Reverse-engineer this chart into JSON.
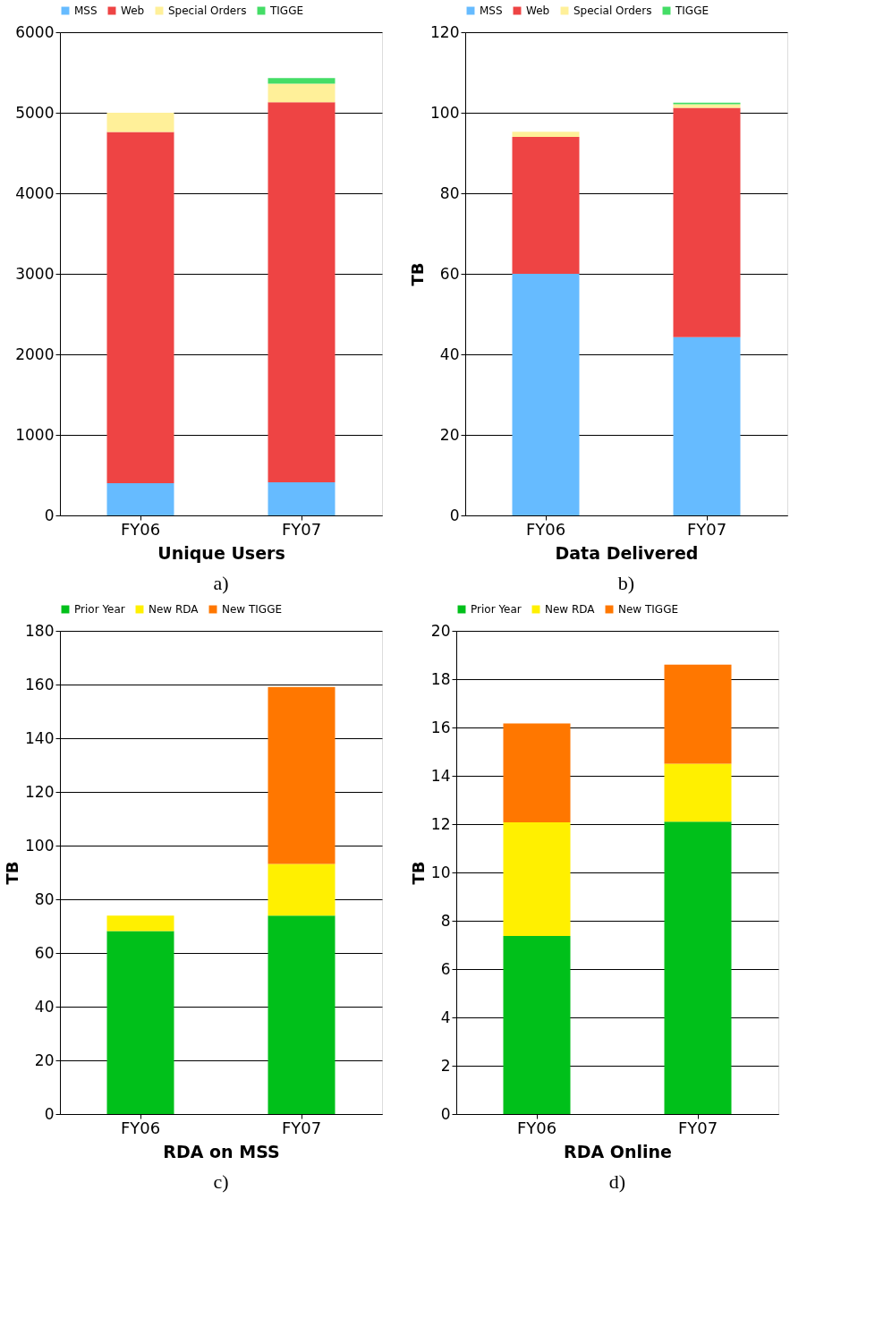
{
  "chart_data": [
    {
      "type": "bar",
      "stacked": true,
      "categories": [
        "FY06",
        "FY07"
      ],
      "xlabel": "Unique Users",
      "annotations": [
        "a)"
      ],
      "ylim": [
        0,
        6000
      ],
      "yticks": [
        0,
        1000,
        2000,
        3000,
        4000,
        5000,
        6000
      ],
      "grid": "y",
      "legend": "top",
      "series": [
        {
          "name": "MSS",
          "color": "#66bbff",
          "values": [
            400,
            410
          ]
        },
        {
          "name": "Web",
          "color": "#ee4444",
          "values": [
            4360,
            4720
          ]
        },
        {
          "name": "Special Orders",
          "color": "#fff099",
          "values": [
            240,
            230
          ]
        },
        {
          "name": "TIGGE",
          "color": "#44dd66",
          "values": [
            null,
            70
          ]
        }
      ]
    },
    {
      "type": "bar",
      "stacked": true,
      "categories": [
        "FY06",
        "FY07"
      ],
      "xlabel": "Data Delivered",
      "ylabel": "TB",
      "annotations": [
        "b)"
      ],
      "ylim": [
        0,
        120
      ],
      "yticks": [
        0,
        20,
        40,
        60,
        80,
        100,
        120
      ],
      "grid": "y",
      "legend": "top",
      "series": [
        {
          "name": "MSS",
          "color": "#66bbff",
          "values": [
            60,
            44.3
          ]
        },
        {
          "name": "Web",
          "color": "#ee4444",
          "values": [
            34,
            56.9
          ]
        },
        {
          "name": "Special Orders",
          "color": "#fff099",
          "values": [
            1.3,
            0.9
          ]
        },
        {
          "name": "TIGGE",
          "color": "#44dd66",
          "values": [
            null,
            0.4
          ]
        }
      ]
    },
    {
      "type": "bar",
      "stacked": true,
      "categories": [
        "FY06",
        "FY07"
      ],
      "xlabel": "RDA on MSS",
      "ylabel": "TB",
      "annotations": [
        "c)"
      ],
      "ylim": [
        0,
        180
      ],
      "yticks": [
        0,
        20,
        40,
        60,
        80,
        100,
        120,
        140,
        160,
        180
      ],
      "grid": "y",
      "legend": "top",
      "series": [
        {
          "name": "Prior Year",
          "color": "#00c01a",
          "values": [
            68.2,
            73.9
          ]
        },
        {
          "name": "New RDA",
          "color": "#fff000",
          "values": [
            5.7,
            19.3
          ]
        },
        {
          "name": "New TIGGE",
          "color": "#ff7700",
          "values": [
            null,
            65.9
          ]
        }
      ]
    },
    {
      "type": "bar",
      "stacked": true,
      "categories": [
        "FY06",
        "FY07"
      ],
      "xlabel": "RDA Online",
      "ylabel": "TB",
      "annotations": [
        "d)"
      ],
      "ylim": [
        0,
        20
      ],
      "yticks": [
        0,
        2,
        4,
        6,
        8,
        10,
        12,
        14,
        16,
        18,
        20
      ],
      "grid": "y",
      "legend": "top",
      "series": [
        {
          "name": "Prior Year",
          "color": "#00c01a",
          "values": [
            7.37,
            12.1
          ]
        },
        {
          "name": "New RDA",
          "color": "#fff000",
          "values": [
            4.7,
            2.4
          ]
        },
        {
          "name": "New TIGGE",
          "color": "#ff7700",
          "values": [
            4.1,
            4.1
          ]
        }
      ]
    }
  ]
}
